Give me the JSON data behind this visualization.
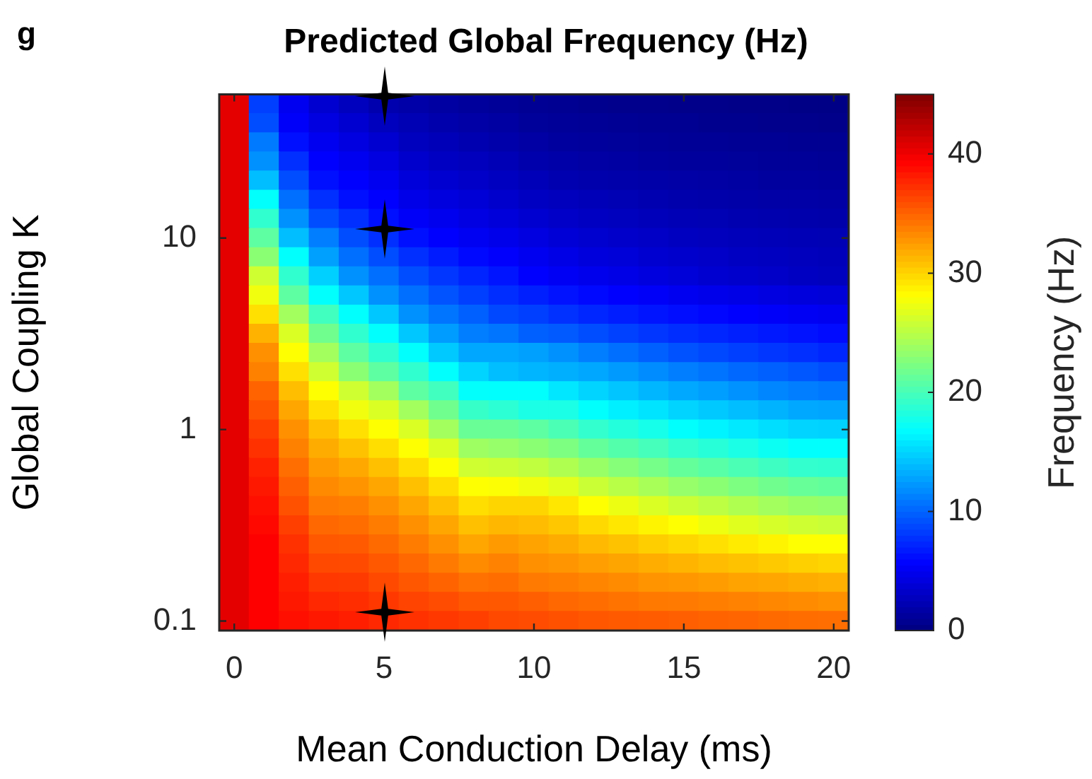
{
  "chart_data": {
    "type": "heatmap",
    "title": "Predicted Global Frequency (Hz)",
    "xlabel": "Mean Conduction Delay (ms)",
    "ylabel": "Global Coupling K",
    "clabel": "Frequency (Hz)",
    "annotations": [
      "g"
    ],
    "categories": [
      "0",
      null,
      null,
      null,
      null,
      "5",
      null,
      null,
      null,
      null,
      "10",
      null,
      null,
      null,
      null,
      "15",
      null,
      null,
      null,
      null,
      "20"
    ],
    "y_categories": [
      null,
      null,
      null,
      null,
      null,
      null,
      null,
      "10",
      null,
      null,
      null,
      null,
      null,
      null,
      null,
      null,
      null,
      "1",
      null,
      null,
      null,
      null,
      null,
      null,
      null,
      null,
      null,
      "0.1"
    ],
    "clim": [
      0,
      45
    ],
    "cticks": [
      0,
      10,
      20,
      30,
      40
    ],
    "cells": [
      [
        40.5,
        8.4,
        5,
        3.6,
        2.8,
        2.1,
        1.8,
        1.5,
        1.3,
        1.1,
        0.9,
        0.8,
        0.7,
        0.6,
        0.6,
        0.5,
        0.5,
        0.4,
        0.4,
        0.3,
        0.3
      ],
      [
        40.5,
        9,
        5.4,
        4.3,
        3.6,
        2.8,
        2.3,
        2,
        1.7,
        1.5,
        1.2,
        1.1,
        1,
        0.9,
        0.8,
        0.8,
        0.7,
        0.7,
        0.6,
        0.6,
        0.5
      ],
      [
        40.5,
        11,
        6.3,
        5,
        4.3,
        3.6,
        2.8,
        2.5,
        2.2,
        1.9,
        1.6,
        1.4,
        1.3,
        1.2,
        1.1,
        1,
        1,
        0.9,
        0.9,
        0.8,
        0.8
      ],
      [
        40.5,
        12,
        7.7,
        5.6,
        5,
        4.3,
        3.4,
        3,
        2.7,
        2.4,
        2,
        1.8,
        1.6,
        1.5,
        1.4,
        1.3,
        1.3,
        1.2,
        1.1,
        1.1,
        1
      ],
      [
        40.5,
        14,
        9,
        6.3,
        5.6,
        5,
        4,
        3.6,
        3.2,
        2.9,
        2.5,
        2.2,
        2,
        1.9,
        1.8,
        1.7,
        1.6,
        1.5,
        1.4,
        1.4,
        1.3
      ],
      [
        40.5,
        17,
        10.5,
        7.7,
        6.3,
        5.6,
        4.6,
        4.2,
        3.8,
        3.4,
        3,
        2.7,
        2.5,
        2.3,
        2.2,
        2,
        1.9,
        1.8,
        1.7,
        1.7,
        1.6
      ],
      [
        40.5,
        19,
        12,
        9,
        7.7,
        6.3,
        5.3,
        4.9,
        4.4,
        4,
        3.6,
        3.2,
        3,
        2.8,
        2.6,
        2.4,
        2.3,
        2.2,
        2.1,
        2,
        1.9
      ],
      [
        40.5,
        21,
        14,
        11.2,
        9,
        7.7,
        6.3,
        5.6,
        5.1,
        4.7,
        4.3,
        3.8,
        3.5,
        3.3,
        3.1,
        2.9,
        2.7,
        2.6,
        2.5,
        2.4,
        2.3
      ],
      [
        40.5,
        23,
        16.9,
        12.7,
        10.5,
        9,
        7.7,
        6.8,
        6,
        5.5,
        5,
        4.5,
        4.1,
        3.9,
        3.6,
        3.4,
        3.2,
        3,
        2.9,
        2.7,
        2.6
      ],
      [
        40.5,
        26,
        19,
        14.8,
        12,
        10.5,
        9,
        8,
        7.2,
        6.5,
        5.6,
        5.2,
        4.8,
        4.5,
        4.2,
        3.9,
        3.6,
        3.4,
        3.2,
        3,
        2.8
      ],
      [
        40.5,
        27.5,
        21,
        16.9,
        14.4,
        12,
        10.5,
        9.3,
        8.4,
        7.6,
        7,
        6.4,
        6,
        5.6,
        5.3,
        5,
        4.7,
        4.5,
        4.3,
        4.1,
        3.9
      ],
      [
        40.5,
        29.5,
        24,
        19.7,
        16.9,
        14.4,
        12,
        10.8,
        9.8,
        8.8,
        8.4,
        7.8,
        7.3,
        6.9,
        6.5,
        6.2,
        5.9,
        5.6,
        5.4,
        5.2,
        5
      ],
      [
        40.5,
        31.5,
        26.5,
        21.8,
        19,
        16.9,
        14.4,
        12.5,
        11.2,
        10.8,
        9.8,
        9.6,
        9,
        8.5,
        8,
        7.6,
        7.3,
        7,
        6.7,
        6.4,
        6.1
      ],
      [
        40.5,
        33,
        28.1,
        24,
        21,
        19,
        16.9,
        14.5,
        13,
        13,
        12.7,
        12,
        11.2,
        10.5,
        9.8,
        9.2,
        8.8,
        8.4,
        8,
        7.7,
        7.3
      ],
      [
        40.5,
        33.7,
        29.5,
        26,
        23,
        21,
        19,
        16.9,
        15,
        14,
        13.6,
        13.4,
        13,
        12.4,
        11.8,
        11.2,
        10.7,
        10.2,
        9.8,
        9.4,
        9
      ],
      [
        40.5,
        35,
        31,
        28.1,
        26,
        24,
        21,
        19.7,
        17,
        16.9,
        16.9,
        15.8,
        15,
        14.3,
        13.7,
        13.1,
        12.6,
        12.1,
        11.6,
        11.2,
        10.9
      ],
      [
        40.5,
        35.7,
        32,
        29.5,
        27.5,
        26.5,
        24,
        21.8,
        19.3,
        18.8,
        18,
        18,
        16.9,
        16.2,
        15.7,
        15,
        14.5,
        14,
        13.5,
        13.1,
        12.9
      ],
      [
        40.5,
        36.6,
        33,
        30.9,
        29.5,
        28.1,
        26.5,
        24,
        21.5,
        21.5,
        21,
        20.2,
        19.1,
        18.4,
        17.8,
        16.9,
        16.4,
        15.9,
        15.4,
        15,
        14.9
      ],
      [
        40.5,
        37.2,
        33.7,
        31.8,
        30.8,
        29.6,
        28.1,
        26.5,
        23.8,
        23.5,
        23,
        22.4,
        21.3,
        20.6,
        19.9,
        19.1,
        18.6,
        18,
        17.4,
        16.9,
        16.9
      ],
      [
        40.5,
        37.9,
        34.5,
        32.6,
        31.9,
        30.9,
        29.6,
        28.1,
        26,
        25.8,
        25.3,
        24.6,
        23.6,
        22.8,
        22.1,
        21.3,
        20.8,
        20.2,
        19.6,
        19.1,
        19
      ],
      [
        40.5,
        38.3,
        35.2,
        33.3,
        32.9,
        32,
        30.9,
        29.6,
        28.1,
        28,
        27.5,
        26.9,
        25.8,
        25,
        24.3,
        23.5,
        23,
        22.4,
        21.8,
        21.4,
        21.2
      ],
      [
        40.5,
        38.7,
        35.8,
        34,
        33.8,
        33,
        32,
        30.9,
        29.6,
        30,
        30,
        29.2,
        28.1,
        27.3,
        26.5,
        25.8,
        25.2,
        24.6,
        24,
        23.6,
        23.4
      ],
      [
        40.5,
        39,
        36.6,
        34.8,
        34.6,
        33.9,
        33,
        32,
        30.9,
        31.3,
        31.1,
        30.6,
        29.8,
        29.2,
        28.6,
        28.1,
        27.4,
        26.8,
        26.3,
        25.9,
        25.7
      ],
      [
        40.5,
        39.4,
        37.2,
        35.5,
        35.4,
        34.7,
        33.9,
        33,
        32,
        32.6,
        32.2,
        31.8,
        31.2,
        30.8,
        30.3,
        29.9,
        29.5,
        29,
        28.6,
        28.1,
        28.1
      ],
      [
        40.5,
        39.4,
        37.6,
        36.2,
        36.1,
        35.5,
        34.8,
        34,
        33.2,
        33.6,
        33,
        32.8,
        32.4,
        32.1,
        31.7,
        31.4,
        31.1,
        30.8,
        30.5,
        30.2,
        30
      ],
      [
        40.5,
        39.4,
        38,
        36.9,
        36.8,
        36.2,
        35.6,
        35,
        34.4,
        34.6,
        34,
        33.8,
        33.5,
        33.2,
        32.9,
        32.7,
        32.5,
        32.2,
        32,
        31.8,
        31.6
      ],
      [
        40.5,
        39.4,
        38.3,
        37.6,
        37.4,
        36.9,
        36.4,
        36,
        35.5,
        35.5,
        35.2,
        34.8,
        34.6,
        34.3,
        34.1,
        34,
        33.8,
        33.6,
        33.4,
        33.2,
        33
      ],
      [
        40.5,
        39.4,
        38.7,
        38.3,
        38,
        37.6,
        37.2,
        36.9,
        36.6,
        36.2,
        36,
        35.8,
        35.6,
        35.4,
        35.3,
        35.2,
        35,
        34.9,
        34.7,
        34.6,
        34.5
      ]
    ]
  }
}
